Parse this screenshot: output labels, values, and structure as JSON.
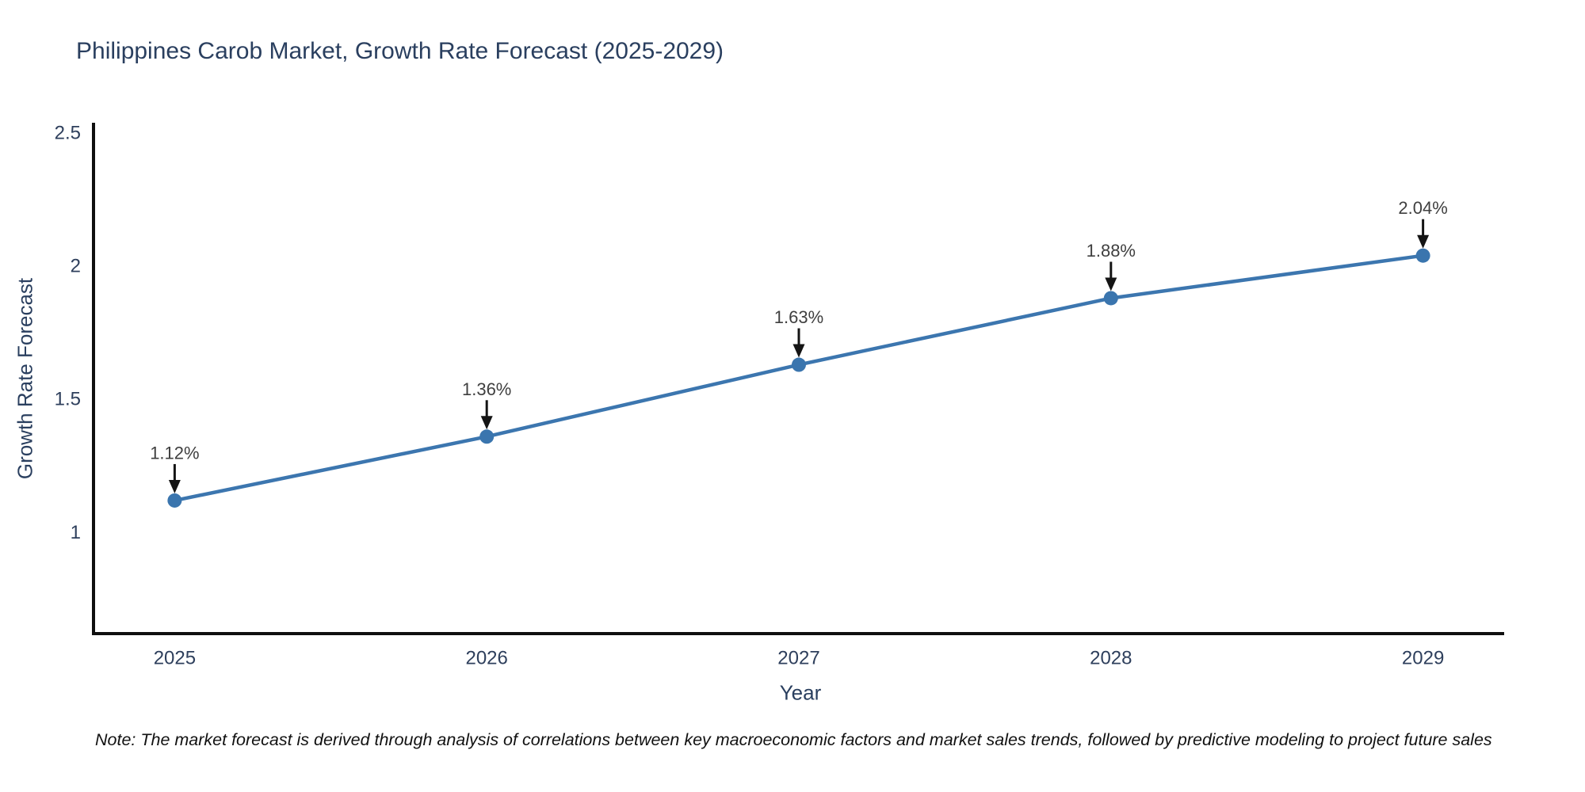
{
  "figure": {
    "note": "Note: The market forecast is derived through analysis of correlations between key macroeconomic factors and market sales trends, followed by predictive modeling to project future sales"
  },
  "chart_data": {
    "type": "line",
    "title": "Philippines Carob Market, Growth Rate Forecast (2025-2029)",
    "x": [
      2025,
      2026,
      2027,
      2028,
      2029
    ],
    "xticklabels": [
      "2025",
      "2026",
      "2027",
      "2028",
      "2029"
    ],
    "series": [
      {
        "name": "Growth Rate Forecast",
        "values": [
          1.12,
          1.36,
          1.63,
          1.88,
          2.04
        ]
      }
    ],
    "point_labels": [
      "1.12%",
      "1.36%",
      "1.63%",
      "1.88%",
      "2.04%"
    ],
    "xlabel": "Year",
    "ylabel": "Growth Rate Forecast",
    "yticks": [
      1,
      1.5,
      2,
      2.5
    ],
    "yticklabels": [
      "1",
      "1.5",
      "2",
      "2.5"
    ],
    "xlim": [
      2024.74,
      2029.26
    ],
    "ylim": [
      0.62,
      2.533
    ],
    "grid": false,
    "legend": "none",
    "line_color": "#3c76af",
    "marker_color": "#3a75ae",
    "annotation_color": "#3f3f3f",
    "arrow_color": "#141414",
    "axis_color": "#0f0f0f",
    "title_color": "#2a3f5f"
  }
}
